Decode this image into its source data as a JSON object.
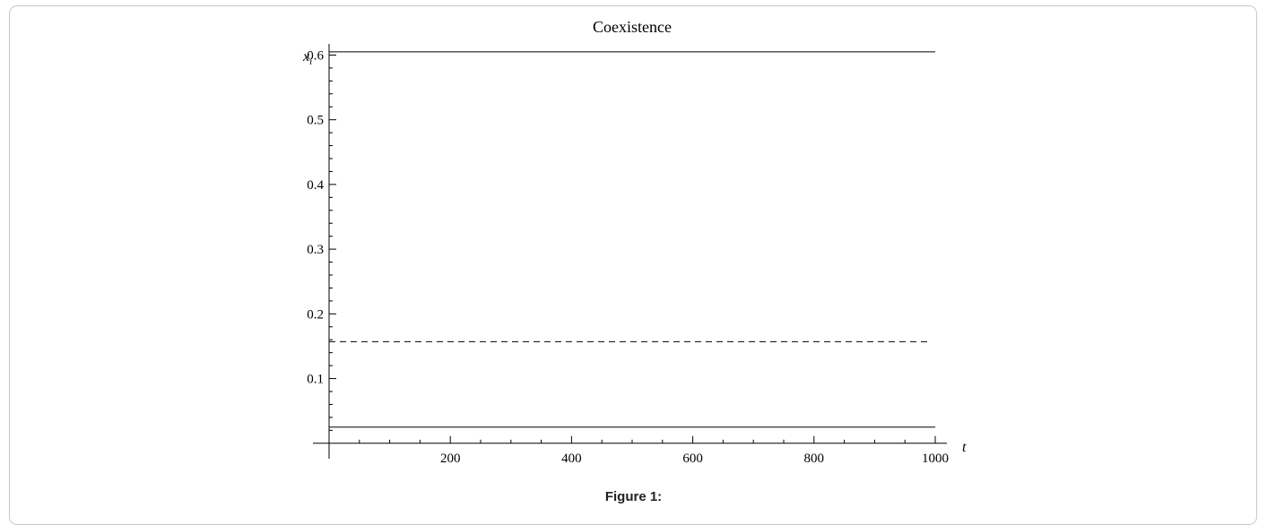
{
  "figure": {
    "caption": "Figure 1:"
  },
  "chart_data": {
    "type": "line",
    "title": "Coexistence",
    "xlabel": "t",
    "ylabel_base": "x",
    "ylabel_sub": "i",
    "xlim": [
      0,
      1000
    ],
    "ylim": [
      -0.01,
      0.62
    ],
    "x_ticks": [
      200,
      400,
      600,
      800,
      1000
    ],
    "y_ticks": [
      0.1,
      0.2,
      0.3,
      0.4,
      0.5,
      0.6
    ],
    "y_tick_labels": [
      "0.1",
      "0.2",
      "0.3",
      "0.4",
      "0.5",
      "0.6"
    ],
    "grid": false,
    "series": [
      {
        "style": "solid",
        "x": [
          0,
          1000
        ],
        "y": [
          0.605,
          0.605
        ]
      },
      {
        "style": "dashed",
        "x": [
          0,
          990
        ],
        "y": [
          0.157,
          0.157
        ]
      },
      {
        "style": "solid",
        "x": [
          0,
          1000
        ],
        "y": [
          0.025,
          0.025
        ]
      }
    ]
  }
}
